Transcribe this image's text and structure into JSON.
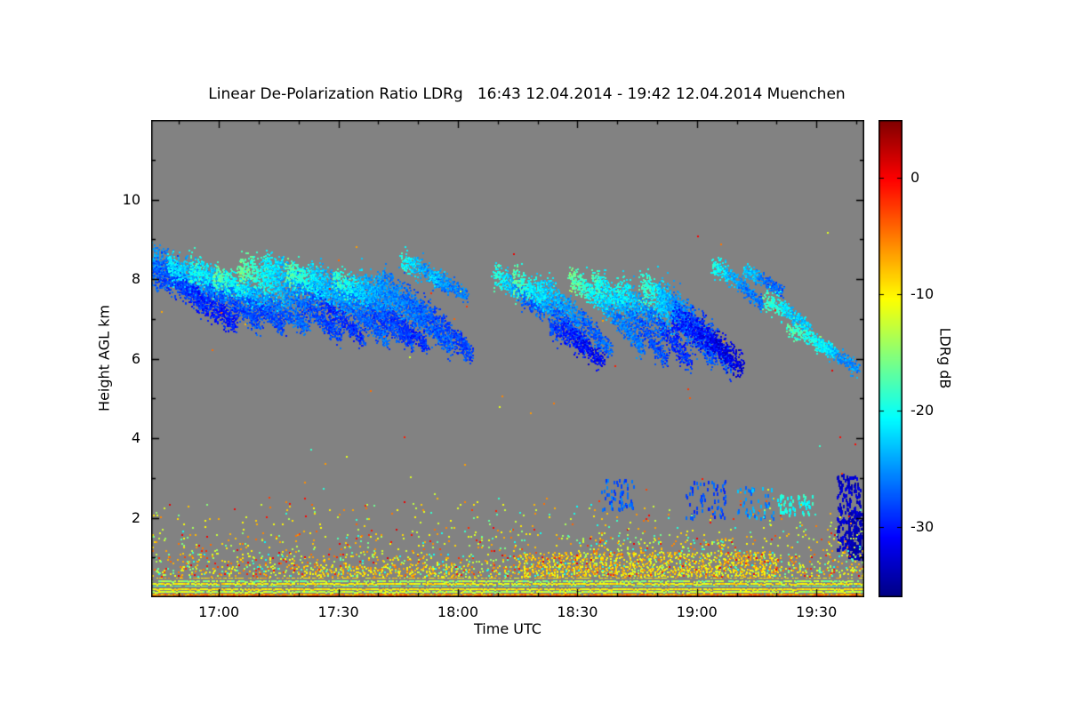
{
  "chart_data": {
    "type": "heatmap",
    "title": "Linear De-Polarization Ratio LDRg   16:43 12.04.2014 - 19:42 12.04.2014 Muenchen",
    "xlabel": "Time UTC",
    "ylabel": "Height AGL km",
    "colorbar_label": "LDRg dB",
    "x_range_minutes": [
      1003,
      1182
    ],
    "height_range_km": [
      0,
      12
    ],
    "value_range_db": [
      -36,
      5
    ],
    "x_ticks": [
      {
        "minute": 1020,
        "label": "17:00"
      },
      {
        "minute": 1050,
        "label": "17:30"
      },
      {
        "minute": 1080,
        "label": "18:00"
      },
      {
        "minute": 1110,
        "label": "18:30"
      },
      {
        "minute": 1140,
        "label": "19:00"
      },
      {
        "minute": 1170,
        "label": "19:30"
      }
    ],
    "x_minor_step": 10,
    "y_ticks": [
      2,
      4,
      6,
      8,
      10
    ],
    "y_minor_ticks": [
      1,
      3,
      5,
      7,
      9,
      11
    ],
    "colorbar_ticks": [
      {
        "value": 0,
        "label": "0"
      },
      {
        "value": -10,
        "label": "-10"
      },
      {
        "value": -20,
        "label": "-20"
      },
      {
        "value": -30,
        "label": "-30"
      }
    ],
    "nodata_color": "#828282",
    "frame_color": "#000000",
    "colormap": [
      {
        "t": 0.0,
        "color": "#000083"
      },
      {
        "t": 0.125,
        "color": "#0000ff"
      },
      {
        "t": 0.375,
        "color": "#00ffff"
      },
      {
        "t": 0.625,
        "color": "#ffff00"
      },
      {
        "t": 0.875,
        "color": "#ff0000"
      },
      {
        "t": 1.0,
        "color": "#800000"
      }
    ],
    "seed": 1234,
    "features": {
      "cirrus_streaks": [
        {
          "t0": 1003,
          "t1": 1017,
          "hTop": 8.5,
          "hBot": 7.3,
          "w": 0.38,
          "head": -24,
          "core": -29
        },
        {
          "t0": 1003,
          "t1": 1024,
          "hTop": 8.2,
          "hBot": 6.9,
          "w": 0.42,
          "head": -27,
          "core": -30
        },
        {
          "t0": 1007,
          "t1": 1030,
          "hTop": 8.35,
          "hBot": 6.9,
          "w": 0.34,
          "head": -21,
          "core": -28
        },
        {
          "t0": 1013,
          "t1": 1036,
          "hTop": 8.25,
          "hBot": 6.8,
          "w": 0.32,
          "head": -19,
          "core": -28
        },
        {
          "t0": 1019,
          "t1": 1042,
          "hTop": 8.05,
          "hBot": 6.8,
          "w": 0.3,
          "head": -17,
          "core": -27
        },
        {
          "t0": 1025,
          "t1": 1050,
          "hTop": 8.3,
          "hBot": 6.6,
          "w": 0.36,
          "head": -16,
          "core": -28
        },
        {
          "t0": 1031,
          "t1": 1056,
          "hTop": 8.4,
          "hBot": 6.5,
          "w": 0.34,
          "head": -20,
          "core": -29
        },
        {
          "t0": 1037,
          "t1": 1062,
          "hTop": 8.2,
          "hBot": 6.5,
          "w": 0.3,
          "head": -17,
          "core": -27
        },
        {
          "t0": 1043,
          "t1": 1068,
          "hTop": 8.1,
          "hBot": 6.4,
          "w": 0.34,
          "head": -22,
          "core": -28
        },
        {
          "t0": 1049,
          "t1": 1072,
          "hTop": 8.0,
          "hBot": 6.3,
          "w": 0.3,
          "head": -18,
          "core": -29
        },
        {
          "t0": 1055,
          "t1": 1078,
          "hTop": 7.9,
          "hBot": 6.35,
          "w": 0.34,
          "head": -23,
          "core": -27
        },
        {
          "t0": 1060,
          "t1": 1083,
          "hTop": 7.85,
          "hBot": 6.15,
          "w": 0.4,
          "head": -25,
          "core": -28
        },
        {
          "t0": 1066,
          "t1": 1077,
          "hTop": 8.45,
          "hBot": 7.8,
          "w": 0.24,
          "head": -20,
          "core": -26
        },
        {
          "t0": 1073,
          "t1": 1082,
          "hTop": 8.1,
          "hBot": 7.6,
          "w": 0.2,
          "head": -22,
          "core": -26
        },
        {
          "t0": 1089,
          "t1": 1101,
          "hTop": 8.1,
          "hBot": 7.2,
          "w": 0.3,
          "head": -19,
          "core": -27
        },
        {
          "t0": 1094,
          "t1": 1112,
          "hTop": 7.95,
          "hBot": 6.4,
          "w": 0.34,
          "head": -17,
          "core": -28
        },
        {
          "t0": 1100,
          "t1": 1118,
          "hTop": 7.8,
          "hBot": 6.2,
          "w": 0.34,
          "head": -21,
          "core": -27
        },
        {
          "t0": 1103,
          "t1": 1116,
          "hTop": 6.8,
          "hBot": 5.95,
          "w": 0.3,
          "head": -28,
          "core": -31
        },
        {
          "t0": 1108,
          "t1": 1126,
          "hTop": 8.0,
          "hBot": 6.3,
          "w": 0.32,
          "head": -16,
          "core": -26
        },
        {
          "t0": 1114,
          "t1": 1132,
          "hTop": 7.9,
          "hBot": 6.0,
          "w": 0.34,
          "head": -18,
          "core": -28
        },
        {
          "t0": 1120,
          "t1": 1138,
          "hTop": 7.75,
          "hBot": 5.9,
          "w": 0.36,
          "head": -20,
          "core": -29
        },
        {
          "t0": 1126,
          "t1": 1144,
          "hTop": 7.8,
          "hBot": 6.1,
          "w": 0.4,
          "head": -18,
          "core": -27
        },
        {
          "t0": 1130,
          "t1": 1148,
          "hTop": 7.5,
          "hBot": 5.9,
          "w": 0.5,
          "head": -23,
          "core": -28
        },
        {
          "t0": 1134,
          "t1": 1151,
          "hTop": 7.0,
          "hBot": 5.8,
          "w": 0.4,
          "head": -29,
          "core": -32
        },
        {
          "t0": 1144,
          "t1": 1156,
          "hTop": 8.35,
          "hBot": 7.35,
          "w": 0.24,
          "head": -20,
          "core": -26
        },
        {
          "t0": 1152,
          "t1": 1161,
          "hTop": 8.2,
          "hBot": 7.7,
          "w": 0.18,
          "head": -22,
          "core": -27
        },
        {
          "t0": 1157,
          "t1": 1168,
          "hTop": 7.45,
          "hBot": 6.8,
          "w": 0.24,
          "head": -18,
          "core": -23
        },
        {
          "t0": 1163,
          "t1": 1174,
          "hTop": 6.75,
          "hBot": 6.2,
          "w": 0.2,
          "head": -18,
          "core": -21
        },
        {
          "t0": 1170,
          "t1": 1180,
          "hTop": 6.35,
          "hBot": 5.75,
          "w": 0.2,
          "head": -20,
          "core": -25
        }
      ],
      "mid_patches": [
        {
          "t0": 1116,
          "t1": 1124,
          "h0": 2.2,
          "h1": 3.0,
          "v": -27,
          "jitter": 4,
          "n": 60
        },
        {
          "t0": 1137,
          "t1": 1147,
          "h0": 2.0,
          "h1": 3.0,
          "v": -28,
          "jitter": 4,
          "n": 70
        },
        {
          "t0": 1150,
          "t1": 1159,
          "h0": 2.0,
          "h1": 2.8,
          "v": -25,
          "jitter": 5,
          "n": 50
        },
        {
          "t0": 1160,
          "t1": 1169,
          "h0": 2.1,
          "h1": 2.6,
          "v": -20,
          "jitter": 4,
          "n": 60
        },
        {
          "t0": 1175,
          "t1": 1181,
          "h0": 1.2,
          "h1": 3.1,
          "v": -33,
          "jitter": 3,
          "n": 220
        },
        {
          "t0": 1178,
          "t1": 1182,
          "h0": 1.0,
          "h1": 2.2,
          "v": -34,
          "jitter": 2,
          "n": 160
        }
      ],
      "boundary_layer": {
        "h_min": 0.55,
        "h_max": 2.35,
        "h_step": 0.045,
        "t_step": 0.7,
        "p_profile": [
          {
            "hMax": 0.8,
            "p": 0.5
          },
          {
            "hMax": 1.1,
            "p": 0.28
          },
          {
            "hMax": 1.6,
            "p": 0.12
          },
          {
            "hMax": 2.35,
            "p": 0.05
          }
        ],
        "enhanced": [
          {
            "t0": 1095,
            "t1": 1160,
            "h0": 0.55,
            "h1": 1.15,
            "p": 0.45,
            "bias": true
          },
          {
            "t0": 1040,
            "t1": 1080,
            "h0": 0.55,
            "h1": 0.9,
            "p": 0.2,
            "bias": true
          },
          {
            "t0": 1110,
            "t1": 1150,
            "h0": 1.1,
            "h1": 1.5,
            "p": 0.15,
            "bias": false
          }
        ]
      },
      "surface_rows": [
        {
          "h": 0.04,
          "v": -2,
          "jitter": 4,
          "fill": 0.8
        },
        {
          "h": 0.1,
          "v": -6,
          "jitter": 5,
          "fill": 0.95
        },
        {
          "h": 0.16,
          "v": -13,
          "jitter": 5,
          "fill": 0.95
        },
        {
          "h": 0.22,
          "v": -10,
          "jitter": 4,
          "fill": 0.97
        },
        {
          "h": 0.3,
          "v": -17,
          "jitter": 6,
          "fill": 0.9
        },
        {
          "h": 0.36,
          "v": -10,
          "jitter": 5,
          "fill": 0.95
        },
        {
          "h": 0.42,
          "v": -14,
          "jitter": 6,
          "fill": 0.85
        },
        {
          "h": 0.5,
          "v": -9,
          "jitter": 6,
          "fill": 0.75
        }
      ],
      "gray_gap_heights": [
        0.46,
        0.26
      ],
      "scatter_dots": {
        "n": 60,
        "h0": 2.4,
        "h1": 9.2
      }
    }
  }
}
